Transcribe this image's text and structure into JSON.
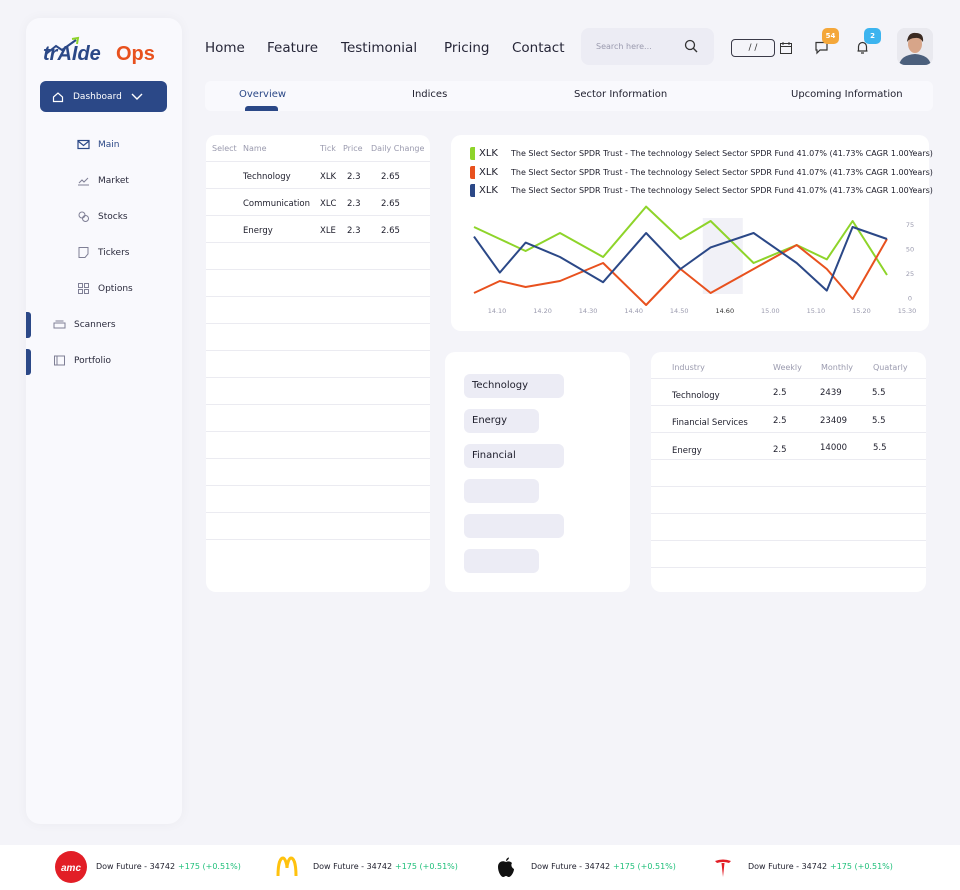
{
  "brand": {
    "name_part1": "trAIde",
    "name_part2": "Ops",
    "accent": "#2b4887",
    "orange": "#e8511e",
    "green": "#8ed42a"
  },
  "header": {
    "nav": [
      "Home",
      "Feature",
      "Testimonial",
      "Pricing",
      "Contact"
    ],
    "search_placeholder": "Search here...",
    "date_value": "/ /",
    "messages_badge": "54",
    "notifications_badge": "2"
  },
  "sidebar": {
    "dashboard_label": "Dashboard",
    "items": [
      {
        "label": "Main",
        "icon": "mail-icon"
      },
      {
        "label": "Market",
        "icon": "chart-line-icon"
      },
      {
        "label": "Stocks",
        "icon": "coins-icon"
      },
      {
        "label": "Tickers",
        "icon": "note-icon"
      },
      {
        "label": "Options",
        "icon": "grid-icon"
      },
      {
        "label": "Scanners",
        "icon": "scanner-icon"
      },
      {
        "label": "Portfolio",
        "icon": "folder-icon"
      }
    ]
  },
  "tabs": [
    "Overview",
    "Indices",
    "Sector Information",
    "Upcoming Information"
  ],
  "stocks_table": {
    "headers": [
      "Select",
      "Name",
      "Tick",
      "Price",
      "Daily Change"
    ],
    "rows": [
      {
        "name": "Technology",
        "tick": "XLK",
        "price": "2.3",
        "change": "2.65"
      },
      {
        "name": "Communication",
        "tick": "XLC",
        "price": "2.3",
        "change": "2.65"
      },
      {
        "name": "Energy",
        "tick": "XLE",
        "price": "2.3",
        "change": "2.65"
      }
    ]
  },
  "chart_data": {
    "type": "line",
    "legend": [
      {
        "tick": "XLK",
        "text": "The Slect Sector SPDR Trust - The technology Select Sector SPDR Fund 41.07% (41.73% CAGR 1.00Years)",
        "color": "#8ed42a"
      },
      {
        "tick": "XLK",
        "text": "The Slect Sector SPDR Trust - The technology Select Sector SPDR Fund 41.07% (41.73% CAGR 1.00Years)",
        "color": "#e8511e"
      },
      {
        "tick": "XLK",
        "text": "The Slect Sector SPDR Trust - The technology Select Sector SPDR Fund 41.07% (41.73% CAGR 1.00Years)",
        "color": "#2b4887"
      }
    ],
    "x_labels": [
      "14.10",
      "14.20",
      "14.30",
      "14.40",
      "14.50",
      "14.60",
      "15.00",
      "15.10",
      "15.20",
      "15.30"
    ],
    "highlight_label": "14.60",
    "y_ticks": [
      "75",
      "50",
      "25",
      "0"
    ],
    "ylim": [
      0,
      75
    ],
    "x": [
      0,
      0.6,
      1.2,
      2,
      3,
      4,
      4.8,
      5.5,
      6.5,
      7.5,
      8.2,
      8.8,
      9.6
    ],
    "series": [
      {
        "values": [
          65,
          55,
          45,
          60,
          40,
          82,
          55,
          70,
          35,
          50,
          38,
          70,
          25
        ],
        "color": "#8ed42a"
      },
      {
        "values": [
          10,
          20,
          15,
          20,
          35,
          0,
          30,
          10,
          30,
          50,
          30,
          5,
          55
        ],
        "color": "#e8511e"
      },
      {
        "values": [
          57,
          27,
          52,
          40,
          19,
          60,
          30,
          48,
          60,
          35,
          12,
          65,
          55
        ],
        "color": "#2b4887"
      }
    ]
  },
  "sectors": [
    "Technology",
    "Energy",
    "Financial",
    "",
    "",
    ""
  ],
  "industry_table": {
    "headers": [
      "Industry",
      "Weekly",
      "Monthly",
      "Quatarly"
    ],
    "rows": [
      {
        "industry": "Technology",
        "weekly": "2.5",
        "monthly": "2439",
        "quarterly": "5.5"
      },
      {
        "industry": "Financial Services",
        "weekly": "2.5",
        "monthly": "23409",
        "quarterly": "5.5"
      },
      {
        "industry": "Energy",
        "weekly": "2.5",
        "monthly": "14000",
        "quarterly": "5.5"
      }
    ]
  },
  "ticker": [
    {
      "logo": "amc-logo",
      "name": "Dow Future - 34742",
      "change": "+175 (+0.51%)"
    },
    {
      "logo": "mcdonalds-logo",
      "name": "Dow Future - 34742",
      "change": "+175 (+0.51%)"
    },
    {
      "logo": "apple-logo",
      "name": "Dow Future - 34742",
      "change": "+175 (+0.51%)"
    },
    {
      "logo": "tesla-logo",
      "name": "Dow Future - 34742",
      "change": "+175 (+0.51%)"
    }
  ]
}
